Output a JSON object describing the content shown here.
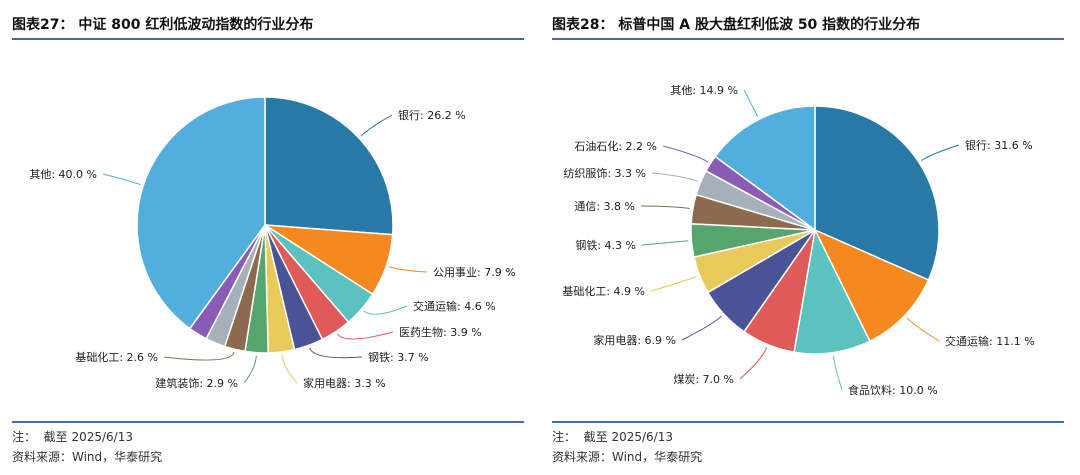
{
  "colors": [
    "#2878a8",
    "#f5891f",
    "#5bc2c0",
    "#e05a5a",
    "#4a5395",
    "#e8c95a",
    "#56a56e",
    "#8c6a4e",
    "#a5b0ba",
    "#8a5bb5",
    "#52aedc"
  ],
  "chart_data": [
    {
      "type": "pie",
      "title": "图表27： 中证 800 红利低波动指数的行业分布",
      "slices": [
        {
          "label": "银行",
          "value": 26.2
        },
        {
          "label": "公用事业",
          "value": 7.9
        },
        {
          "label": "交通运输",
          "value": 4.6
        },
        {
          "label": "医药生物",
          "value": 3.9
        },
        {
          "label": "钢铁",
          "value": 3.7
        },
        {
          "label": "家用电器",
          "value": 3.3
        },
        {
          "label": "建筑装饰",
          "value": 2.9
        },
        {
          "label": "基础化工",
          "value": 2.6
        },
        {
          "label": "",
          "value": 2.5
        },
        {
          "label": "",
          "value": 2.4
        },
        {
          "label": "其他",
          "value": 40.0
        }
      ],
      "note": "注：  截至 2025/6/13",
      "source": "资料来源：Wind，华泰研究"
    },
    {
      "type": "pie",
      "title": "图表28： 标普中国 A 股大盘红利低波 50 指数的行业分布",
      "slices": [
        {
          "label": "银行",
          "value": 31.6
        },
        {
          "label": "交通运输",
          "value": 11.1
        },
        {
          "label": "食品饮料",
          "value": 10.0
        },
        {
          "label": "煤炭",
          "value": 7.0
        },
        {
          "label": "家用电器",
          "value": 6.9
        },
        {
          "label": "基础化工",
          "value": 4.9
        },
        {
          "label": "钢铁",
          "value": 4.3
        },
        {
          "label": "通信",
          "value": 3.8
        },
        {
          "label": "纺织服饰",
          "value": 3.3
        },
        {
          "label": "石油石化",
          "value": 2.2
        },
        {
          "label": "其他",
          "value": 14.9
        }
      ],
      "note": "注：  截至 2025/6/13",
      "source": "资料来源：Wind，华泰研究"
    }
  ]
}
